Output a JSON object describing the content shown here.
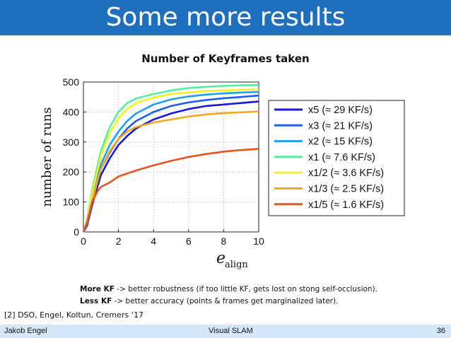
{
  "slide": {
    "title": "Some more results",
    "notes": [
      {
        "bold": "More KF",
        "rest": " -> better robustness (if too little KF, gets lost on stong self-occlusion)."
      },
      {
        "bold": "Less KF",
        "rest": " -> better accuracy (points & frames get marginalized later)."
      }
    ],
    "reference": "[2] DSO, Engel, Koltun, Cremers ‘17",
    "footer": {
      "author": "Jakob Engel",
      "center": "Visual SLAM",
      "page": "36"
    }
  },
  "chart_data": {
    "type": "line",
    "title": "Number of Keyframes taken",
    "xlabel_main": "e",
    "xlabel_sub": "align",
    "ylabel": "number of runs",
    "xlim": [
      0,
      10
    ],
    "ylim": [
      0,
      500
    ],
    "xticks": [
      0,
      2,
      4,
      6,
      8,
      10
    ],
    "yticks": [
      0,
      100,
      200,
      300,
      400,
      500
    ],
    "grid": true,
    "legend_position": "right",
    "x": [
      0,
      0.2,
      0.5,
      0.8,
      1,
      1.5,
      2,
      2.5,
      3,
      4,
      5,
      6,
      7,
      8,
      9,
      10
    ],
    "series": [
      {
        "name": "x5 (≈ 29 KF/s)",
        "color": "#1818d8",
        "values": [
          0,
          20,
          90,
          150,
          190,
          245,
          290,
          320,
          345,
          375,
          395,
          410,
          420,
          425,
          430,
          435
        ]
      },
      {
        "name": "x3 (≈ 21 KF/s)",
        "color": "#1f5fe6",
        "values": [
          0,
          25,
          100,
          165,
          210,
          265,
          310,
          345,
          370,
          400,
          420,
          432,
          440,
          446,
          450,
          455
        ]
      },
      {
        "name": "x2 (≈ 15 KF/s)",
        "color": "#1ca0f0",
        "values": [
          0,
          30,
          110,
          180,
          225,
          290,
          335,
          370,
          395,
          425,
          442,
          452,
          458,
          462,
          465,
          467
        ]
      },
      {
        "name": "x1 (≈ 7.6 KF/s)",
        "color": "#50f0a0",
        "values": [
          0,
          40,
          140,
          220,
          270,
          350,
          400,
          430,
          445,
          460,
          472,
          480,
          484,
          487,
          489,
          490
        ]
      },
      {
        "name": "x1/2 (≈ 3.6 KF/s)",
        "color": "#f2f21e",
        "values": [
          0,
          35,
          130,
          205,
          255,
          330,
          380,
          410,
          430,
          448,
          460,
          465,
          470,
          472,
          474,
          475
        ]
      },
      {
        "name": "x1/3 (≈ 2.5 KF/s)",
        "color": "#f5a81e",
        "values": [
          0,
          30,
          105,
          170,
          210,
          270,
          310,
          335,
          350,
          365,
          375,
          385,
          392,
          396,
          399,
          402
        ]
      },
      {
        "name": "x1/5 (≈ 1.6 KF/s)",
        "color": "#e8531c",
        "values": [
          0,
          30,
          100,
          135,
          150,
          165,
          185,
          195,
          205,
          222,
          237,
          250,
          260,
          268,
          273,
          277
        ]
      }
    ]
  }
}
